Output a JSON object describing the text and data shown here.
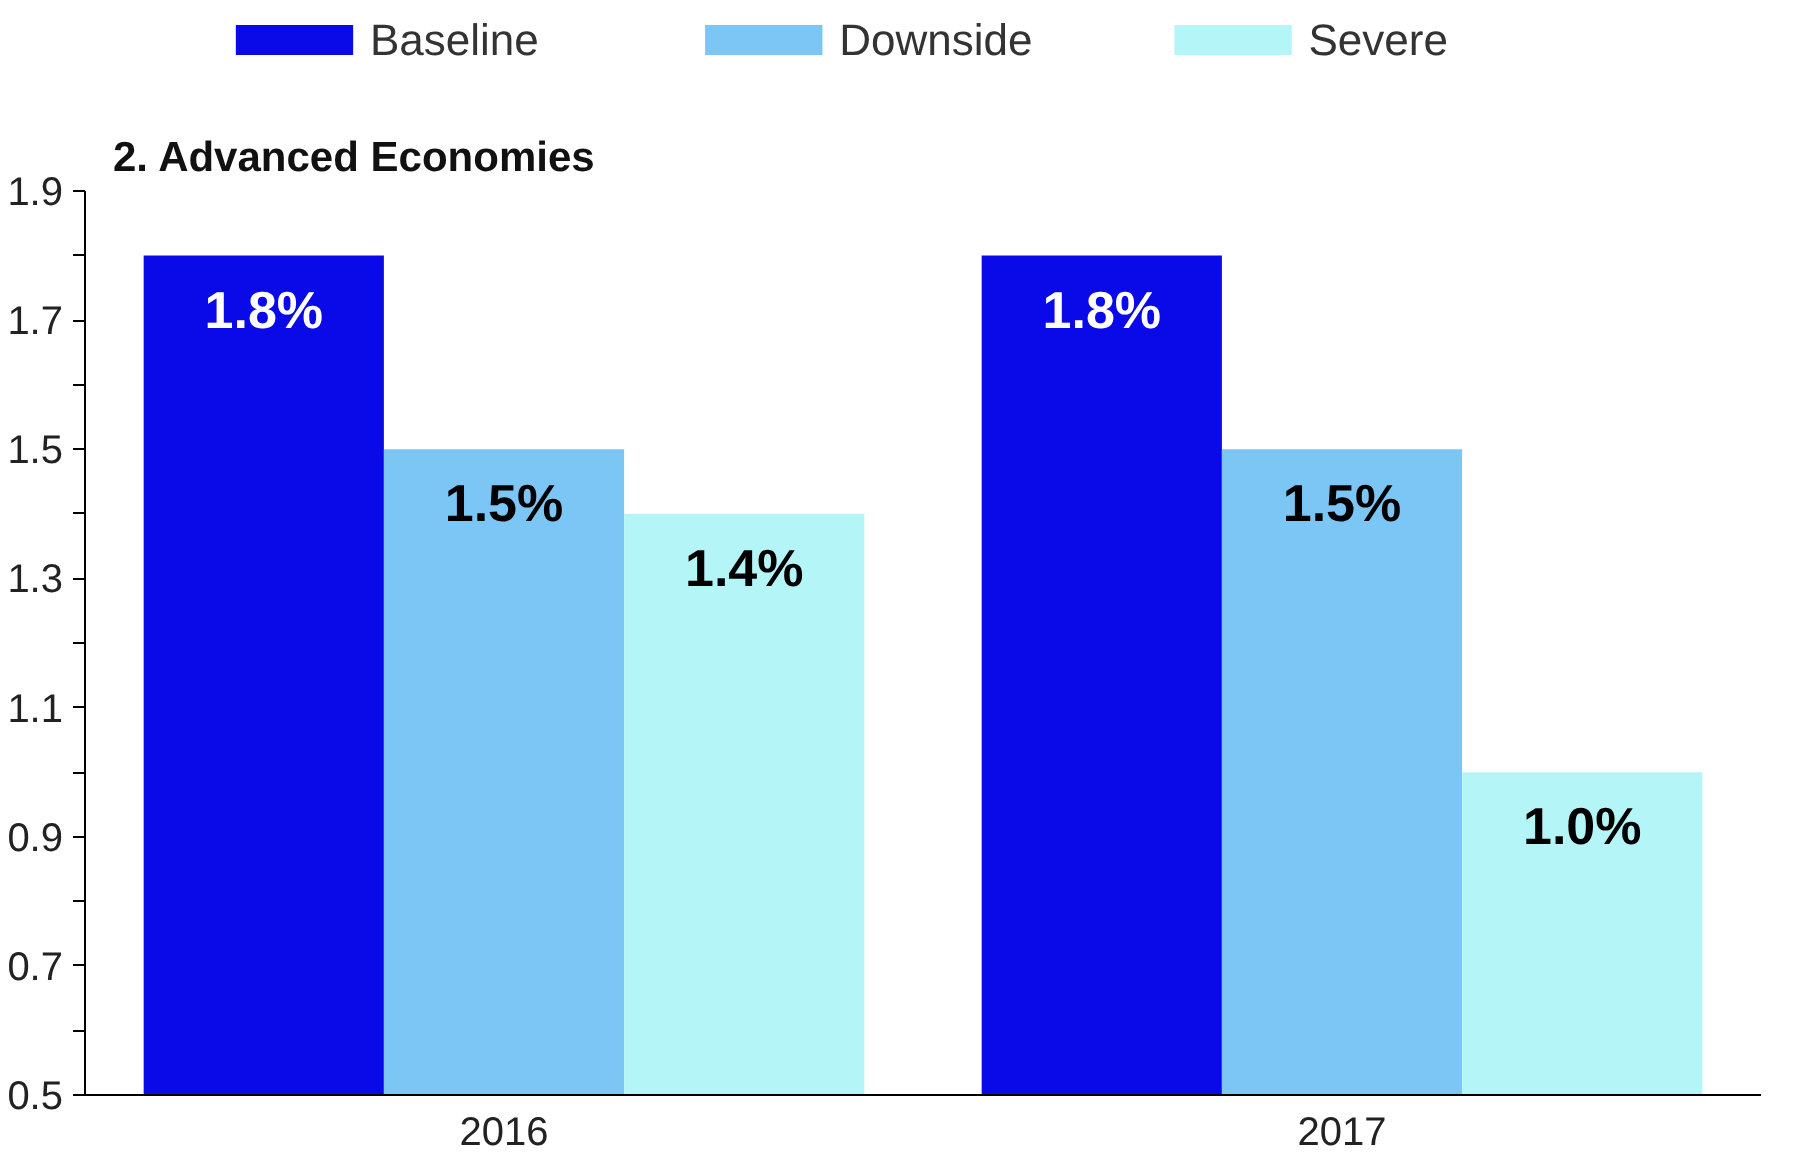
{
  "chart_data": {
    "type": "bar",
    "title": "2. Advanced Economies",
    "categories": [
      "2016",
      "2017"
    ],
    "series": [
      {
        "name": "Baseline",
        "color": "#0a0ae8",
        "values": [
          1.8,
          1.8
        ],
        "value_labels": [
          "1.8%",
          "1.8%"
        ]
      },
      {
        "name": "Downside",
        "color": "#7cc6f6",
        "values": [
          1.5,
          1.5
        ],
        "value_labels": [
          "1.5%",
          "1.5%"
        ]
      },
      {
        "name": "Severe",
        "color": "#b4f6f8",
        "values": [
          1.4,
          1.0
        ],
        "value_labels": [
          "1.4%",
          "1.0%"
        ]
      }
    ],
    "ylim": [
      0.5,
      1.9
    ],
    "yticks": [
      0.5,
      {
        "value": 0.6,
        "label": null
      },
      0.7,
      {
        "value": 0.8,
        "label": null
      },
      0.9,
      {
        "value": 1.0,
        "label": null
      },
      1.1,
      {
        "value": 1.2,
        "label": null
      },
      1.3,
      {
        "value": 1.4,
        "label": null
      },
      1.5,
      {
        "value": 1.6,
        "label": null
      },
      1.7,
      {
        "value": 1.8,
        "label": null
      },
      1.9
    ],
    "grid": false,
    "legend": "top"
  }
}
